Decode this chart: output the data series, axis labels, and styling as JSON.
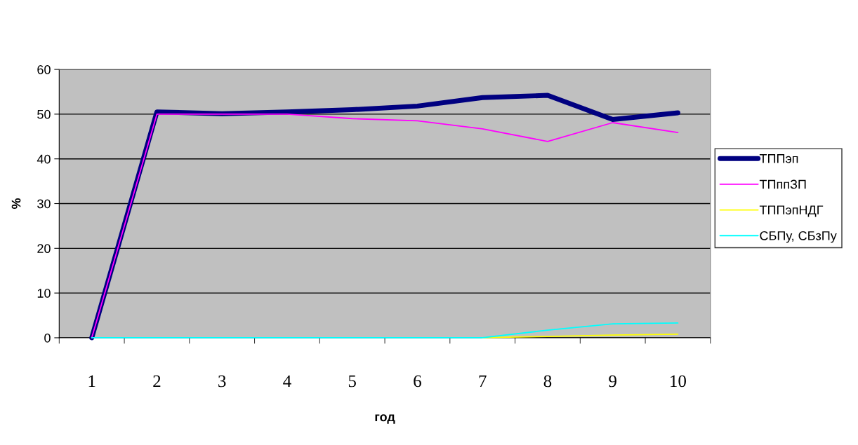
{
  "chart_data": {
    "type": "line",
    "xlabel": "год",
    "ylabel": "%",
    "categories": [
      "1",
      "2",
      "3",
      "4",
      "5",
      "6",
      "7",
      "8",
      "9",
      "10"
    ],
    "series": [
      {
        "name": "ТППэп",
        "color": "#000080",
        "values": [
          0,
          50.5,
          50.1,
          50.5,
          51.0,
          51.8,
          53.7,
          54.2,
          48.8,
          50.3
        ]
      },
      {
        "name": "ТПппЗП",
        "color": "#ff00ff",
        "values": [
          0,
          50,
          50,
          50,
          49.0,
          48.5,
          46.7,
          43.9,
          48.1,
          45.9
        ]
      },
      {
        "name": "ТППэпНДГ",
        "color": "#ffff00",
        "values": [
          null,
          null,
          null,
          null,
          null,
          null,
          0,
          0.3,
          0.6,
          0.8
        ]
      },
      {
        "name": "СБПу, СБзПу",
        "color": "#00ffff",
        "values": [
          0,
          0,
          0,
          0,
          0,
          0,
          0,
          1.7,
          3.1,
          3.3
        ]
      }
    ],
    "ylim": [
      0,
      60
    ],
    "yticks": [
      0,
      10,
      20,
      30,
      40,
      50,
      60
    ],
    "grid": "y",
    "legend": "right",
    "marker": "none",
    "line_style": "solid"
  }
}
